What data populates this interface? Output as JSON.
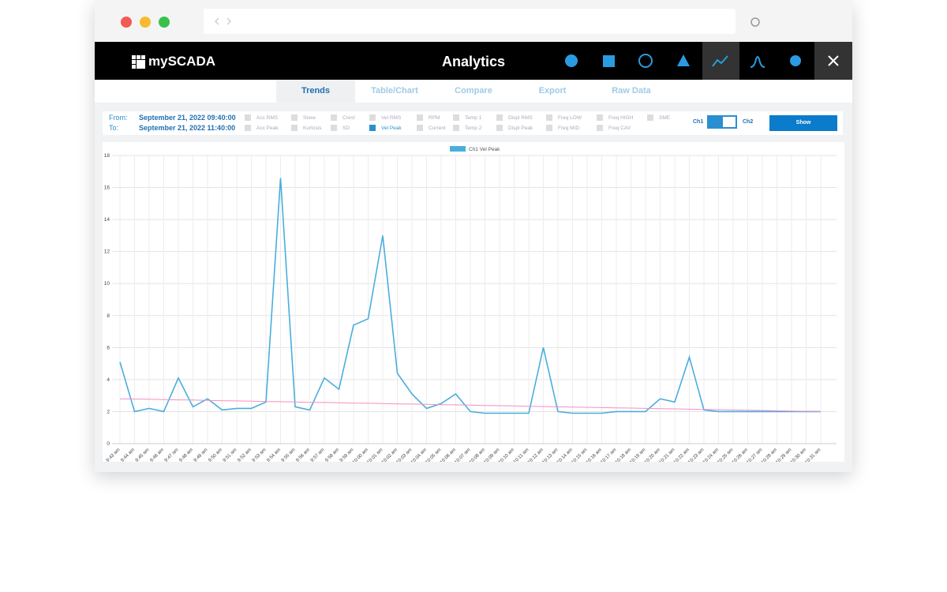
{
  "header": {
    "logo": "mySCADA",
    "title": "Analytics"
  },
  "tabs": [
    {
      "label": "Trends",
      "active": true
    },
    {
      "label": "Table/Chart",
      "active": false
    },
    {
      "label": "Compare",
      "active": false
    },
    {
      "label": "Export",
      "active": false
    },
    {
      "label": "Raw Data",
      "active": false
    }
  ],
  "filters": {
    "from_label": "From:",
    "from": "September 21, 2022 09:40:00",
    "to_label": "To:",
    "to": "September 21, 2022 11:40:00"
  },
  "options": [
    {
      "label": "Acc RMS",
      "checked": false
    },
    {
      "label": "Acc Peak",
      "checked": false
    },
    {
      "label": "Skew",
      "checked": false
    },
    {
      "label": "Kurtosis",
      "checked": false
    },
    {
      "label": "Crest",
      "checked": false
    },
    {
      "label": "SD",
      "checked": false
    },
    {
      "label": "Vel RMS",
      "checked": false
    },
    {
      "label": "Vel Peak",
      "checked": true
    },
    {
      "label": "RPM",
      "checked": false
    },
    {
      "label": "Current",
      "checked": false
    },
    {
      "label": "Temp 1",
      "checked": false
    },
    {
      "label": "Temp 2",
      "checked": false
    },
    {
      "label": "Displ RMS",
      "checked": false
    },
    {
      "label": "Displ Peak",
      "checked": false
    },
    {
      "label": "Freq LOW",
      "checked": false
    },
    {
      "label": "Freq MID",
      "checked": false
    },
    {
      "label": "Freq HIGH",
      "checked": false
    },
    {
      "label": "Freq CAV",
      "checked": false
    },
    {
      "label": "SME",
      "checked": false
    }
  ],
  "channels": [
    "Ch1",
    "Ch2"
  ],
  "button": "Show",
  "chart_data": {
    "type": "line",
    "categories": [
      "9:43 am",
      "9:44 am",
      "9:45 am",
      "9:46 am",
      "9:47 am",
      "9:48 am",
      "9:49 am",
      "9:50 am",
      "9:51 am",
      "9:52 am",
      "9:53 am",
      "9:54 am",
      "9:55 am",
      "9:56 am",
      "9:57 am",
      "9:58 am",
      "9:59 am",
      "10:00 am",
      "10:01 am",
      "10:02 am",
      "10:03 am",
      "10:04 am",
      "10:05 am",
      "10:06 am",
      "10:07 am",
      "10:08 am",
      "10:09 am",
      "10:10 am",
      "10:11 am",
      "10:12 am",
      "10:13 am",
      "10:14 am",
      "10:15 am",
      "10:16 am",
      "10:17 am",
      "10:18 am",
      "10:19 am",
      "10:20 am",
      "10:21 am",
      "10:22 am",
      "10:23 am",
      "10:24 am",
      "10:25 am",
      "10:26 am",
      "10:27 am",
      "10:28 am",
      "10:29 am",
      "10:30 am",
      "10:31 am"
    ],
    "series": [
      {
        "name": "Ch1 Vel Peak",
        "color": "#4aaedd",
        "values": [
          5.1,
          2.0,
          2.2,
          2.0,
          4.1,
          2.3,
          2.8,
          2.1,
          2.2,
          2.2,
          2.6,
          16.6,
          2.3,
          2.1,
          4.1,
          3.4,
          7.4,
          7.8,
          13.0,
          4.4,
          3.1,
          2.2,
          2.5,
          3.1,
          2.0,
          1.9,
          1.9,
          1.9,
          1.9,
          6.0,
          2.0,
          1.9,
          1.9,
          1.9,
          2.0,
          2.0,
          2.0,
          2.8,
          2.6,
          5.4,
          2.1,
          2.0,
          2.0,
          2.0,
          2.0,
          2.0,
          2.0,
          2.0,
          2.0
        ]
      },
      {
        "color": "#f48fc0",
        "values": [
          2.8,
          2.78,
          2.77,
          2.75,
          2.73,
          2.72,
          2.7,
          2.68,
          2.67,
          2.65,
          2.63,
          2.62,
          2.6,
          2.58,
          2.57,
          2.55,
          2.53,
          2.52,
          2.5,
          2.48,
          2.47,
          2.45,
          2.43,
          2.42,
          2.4,
          2.38,
          2.37,
          2.35,
          2.33,
          2.32,
          2.3,
          2.28,
          2.27,
          2.25,
          2.23,
          2.22,
          2.2,
          2.18,
          2.17,
          2.15,
          2.13,
          2.12,
          2.1,
          2.08,
          2.07,
          2.05,
          2.03,
          2.02,
          2.0
        ]
      }
    ],
    "ylim": [
      0,
      18
    ],
    "yticks": [
      0,
      2,
      4,
      6,
      8,
      10,
      12,
      14,
      16,
      18
    ],
    "grid": true,
    "legend": "top"
  }
}
